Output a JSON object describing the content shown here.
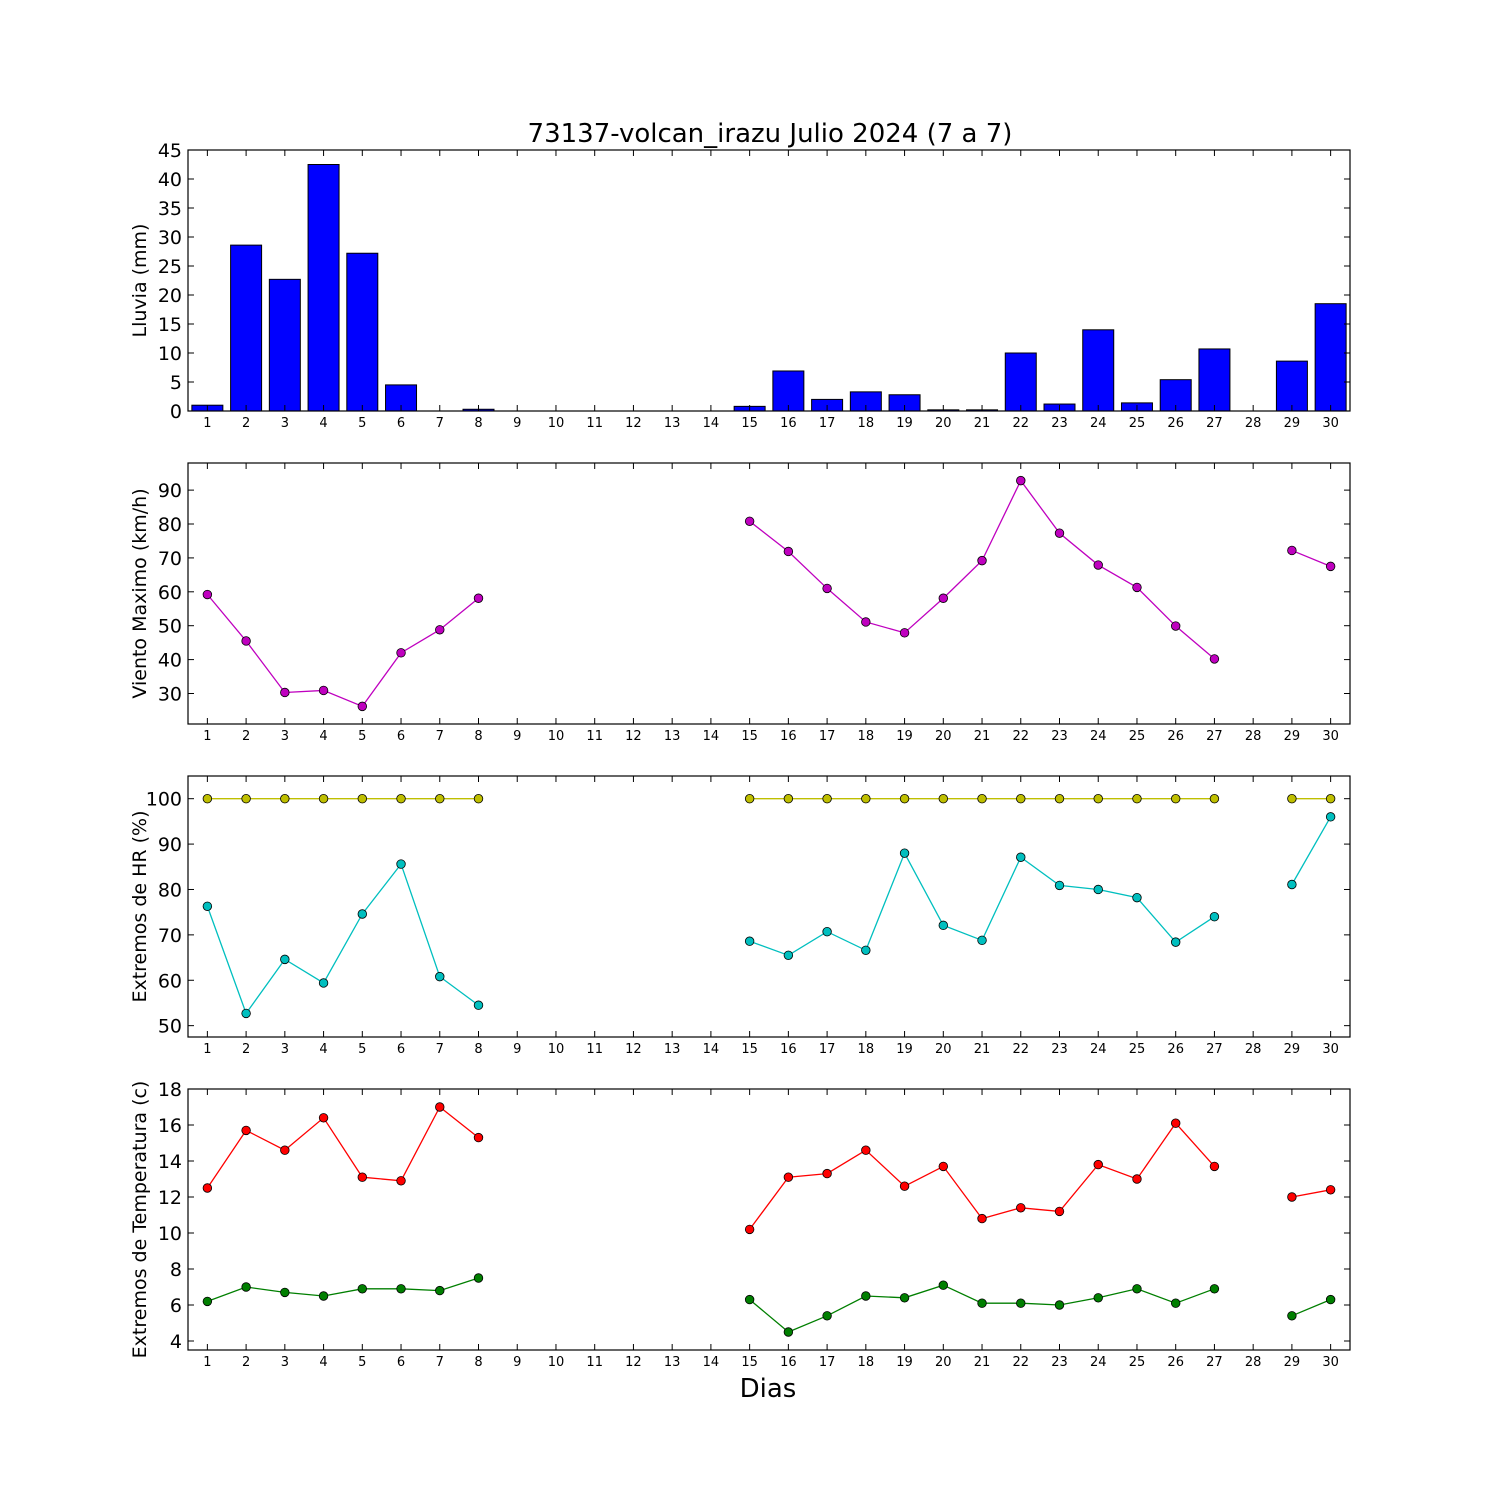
{
  "figure": {
    "title": "73137-volcan_irazu Julio 2024  (7 a 7)",
    "xlabel": "Dias"
  },
  "chart_data": [
    {
      "type": "bar",
      "ylabel": "Lluvia (mm)",
      "ylim": [
        0,
        45
      ],
      "yticks": [
        0,
        5,
        10,
        15,
        20,
        25,
        30,
        35,
        40,
        45
      ],
      "xlim": [
        0.5,
        30.5
      ],
      "categories": [
        1,
        2,
        3,
        4,
        5,
        6,
        7,
        8,
        9,
        10,
        11,
        12,
        13,
        14,
        15,
        16,
        17,
        18,
        19,
        20,
        21,
        22,
        23,
        24,
        25,
        26,
        27,
        28,
        29,
        30
      ],
      "series": [
        {
          "color": "#0000ff",
          "values": [
            1.0,
            28.6,
            22.7,
            42.5,
            27.2,
            4.5,
            0.0,
            0.3,
            0.0,
            0.0,
            0.0,
            0.0,
            0.0,
            0.0,
            0.8,
            6.9,
            2.0,
            3.3,
            2.8,
            0.2,
            0.2,
            10.0,
            1.2,
            14.0,
            1.4,
            5.4,
            10.7,
            null,
            8.6,
            18.5
          ]
        }
      ]
    },
    {
      "type": "line",
      "ylabel": "Viento Maximo (km/h)",
      "ylim": [
        21,
        98
      ],
      "yticks": [
        30,
        40,
        50,
        60,
        70,
        80,
        90
      ],
      "xlim": [
        0.5,
        30.5
      ],
      "x": [
        1,
        2,
        3,
        4,
        5,
        6,
        7,
        8,
        9,
        10,
        11,
        12,
        13,
        14,
        15,
        16,
        17,
        18,
        19,
        20,
        21,
        22,
        23,
        24,
        25,
        26,
        27,
        28,
        29,
        30
      ],
      "series": [
        {
          "color": "#bf00bf",
          "values": [
            59.2,
            45.5,
            30.3,
            30.9,
            26.2,
            42.0,
            48.8,
            58.1,
            null,
            null,
            null,
            null,
            null,
            null,
            80.8,
            71.9,
            61.0,
            51.1,
            47.9,
            58.1,
            69.2,
            92.8,
            77.3,
            67.9,
            61.3,
            49.9,
            40.2,
            null,
            72.2,
            67.5
          ]
        }
      ]
    },
    {
      "type": "line",
      "ylabel": "Extremos de HR (%)",
      "ylim": [
        47.5,
        105
      ],
      "yticks": [
        50,
        60,
        70,
        80,
        90,
        100
      ],
      "xlim": [
        0.5,
        30.5
      ],
      "x": [
        1,
        2,
        3,
        4,
        5,
        6,
        7,
        8,
        9,
        10,
        11,
        12,
        13,
        14,
        15,
        16,
        17,
        18,
        19,
        20,
        21,
        22,
        23,
        24,
        25,
        26,
        27,
        28,
        29,
        30
      ],
      "series": [
        {
          "color": "#bfbf00",
          "values": [
            100,
            100,
            100,
            100,
            100,
            100,
            100,
            100,
            null,
            null,
            null,
            null,
            null,
            null,
            100,
            100,
            100,
            100,
            100,
            100,
            100,
            100,
            100,
            100,
            100,
            100,
            100,
            null,
            100,
            100
          ]
        },
        {
          "color": "#00bfbf",
          "values": [
            76.3,
            52.7,
            64.6,
            59.4,
            74.6,
            85.6,
            60.8,
            54.5,
            null,
            null,
            null,
            null,
            null,
            null,
            68.6,
            65.5,
            70.7,
            66.6,
            88.0,
            72.1,
            68.8,
            87.1,
            80.9,
            80.0,
            78.2,
            68.4,
            74.0,
            null,
            81.1,
            96.0
          ]
        }
      ]
    },
    {
      "type": "line",
      "ylabel": "Extremos de Temperatura (c)",
      "ylim": [
        3.5,
        18
      ],
      "yticks": [
        4,
        6,
        8,
        10,
        12,
        14,
        16,
        18
      ],
      "xlim": [
        0.5,
        30.5
      ],
      "x": [
        1,
        2,
        3,
        4,
        5,
        6,
        7,
        8,
        9,
        10,
        11,
        12,
        13,
        14,
        15,
        16,
        17,
        18,
        19,
        20,
        21,
        22,
        23,
        24,
        25,
        26,
        27,
        28,
        29,
        30
      ],
      "series": [
        {
          "color": "#ff0000",
          "values": [
            12.5,
            15.7,
            14.6,
            16.4,
            13.1,
            12.9,
            17.0,
            15.3,
            null,
            null,
            null,
            null,
            null,
            null,
            10.2,
            13.1,
            13.3,
            14.6,
            12.6,
            13.7,
            10.8,
            11.4,
            11.2,
            13.8,
            13.0,
            16.1,
            13.7,
            null,
            12.0,
            12.4
          ]
        },
        {
          "color": "#007f00",
          "values": [
            6.2,
            7.0,
            6.7,
            6.5,
            6.9,
            6.9,
            6.8,
            7.5,
            null,
            null,
            null,
            null,
            null,
            null,
            6.3,
            4.5,
            5.4,
            6.5,
            6.4,
            7.1,
            6.1,
            6.1,
            6.0,
            6.4,
            6.9,
            6.1,
            6.9,
            null,
            5.4,
            6.3
          ]
        }
      ]
    }
  ]
}
